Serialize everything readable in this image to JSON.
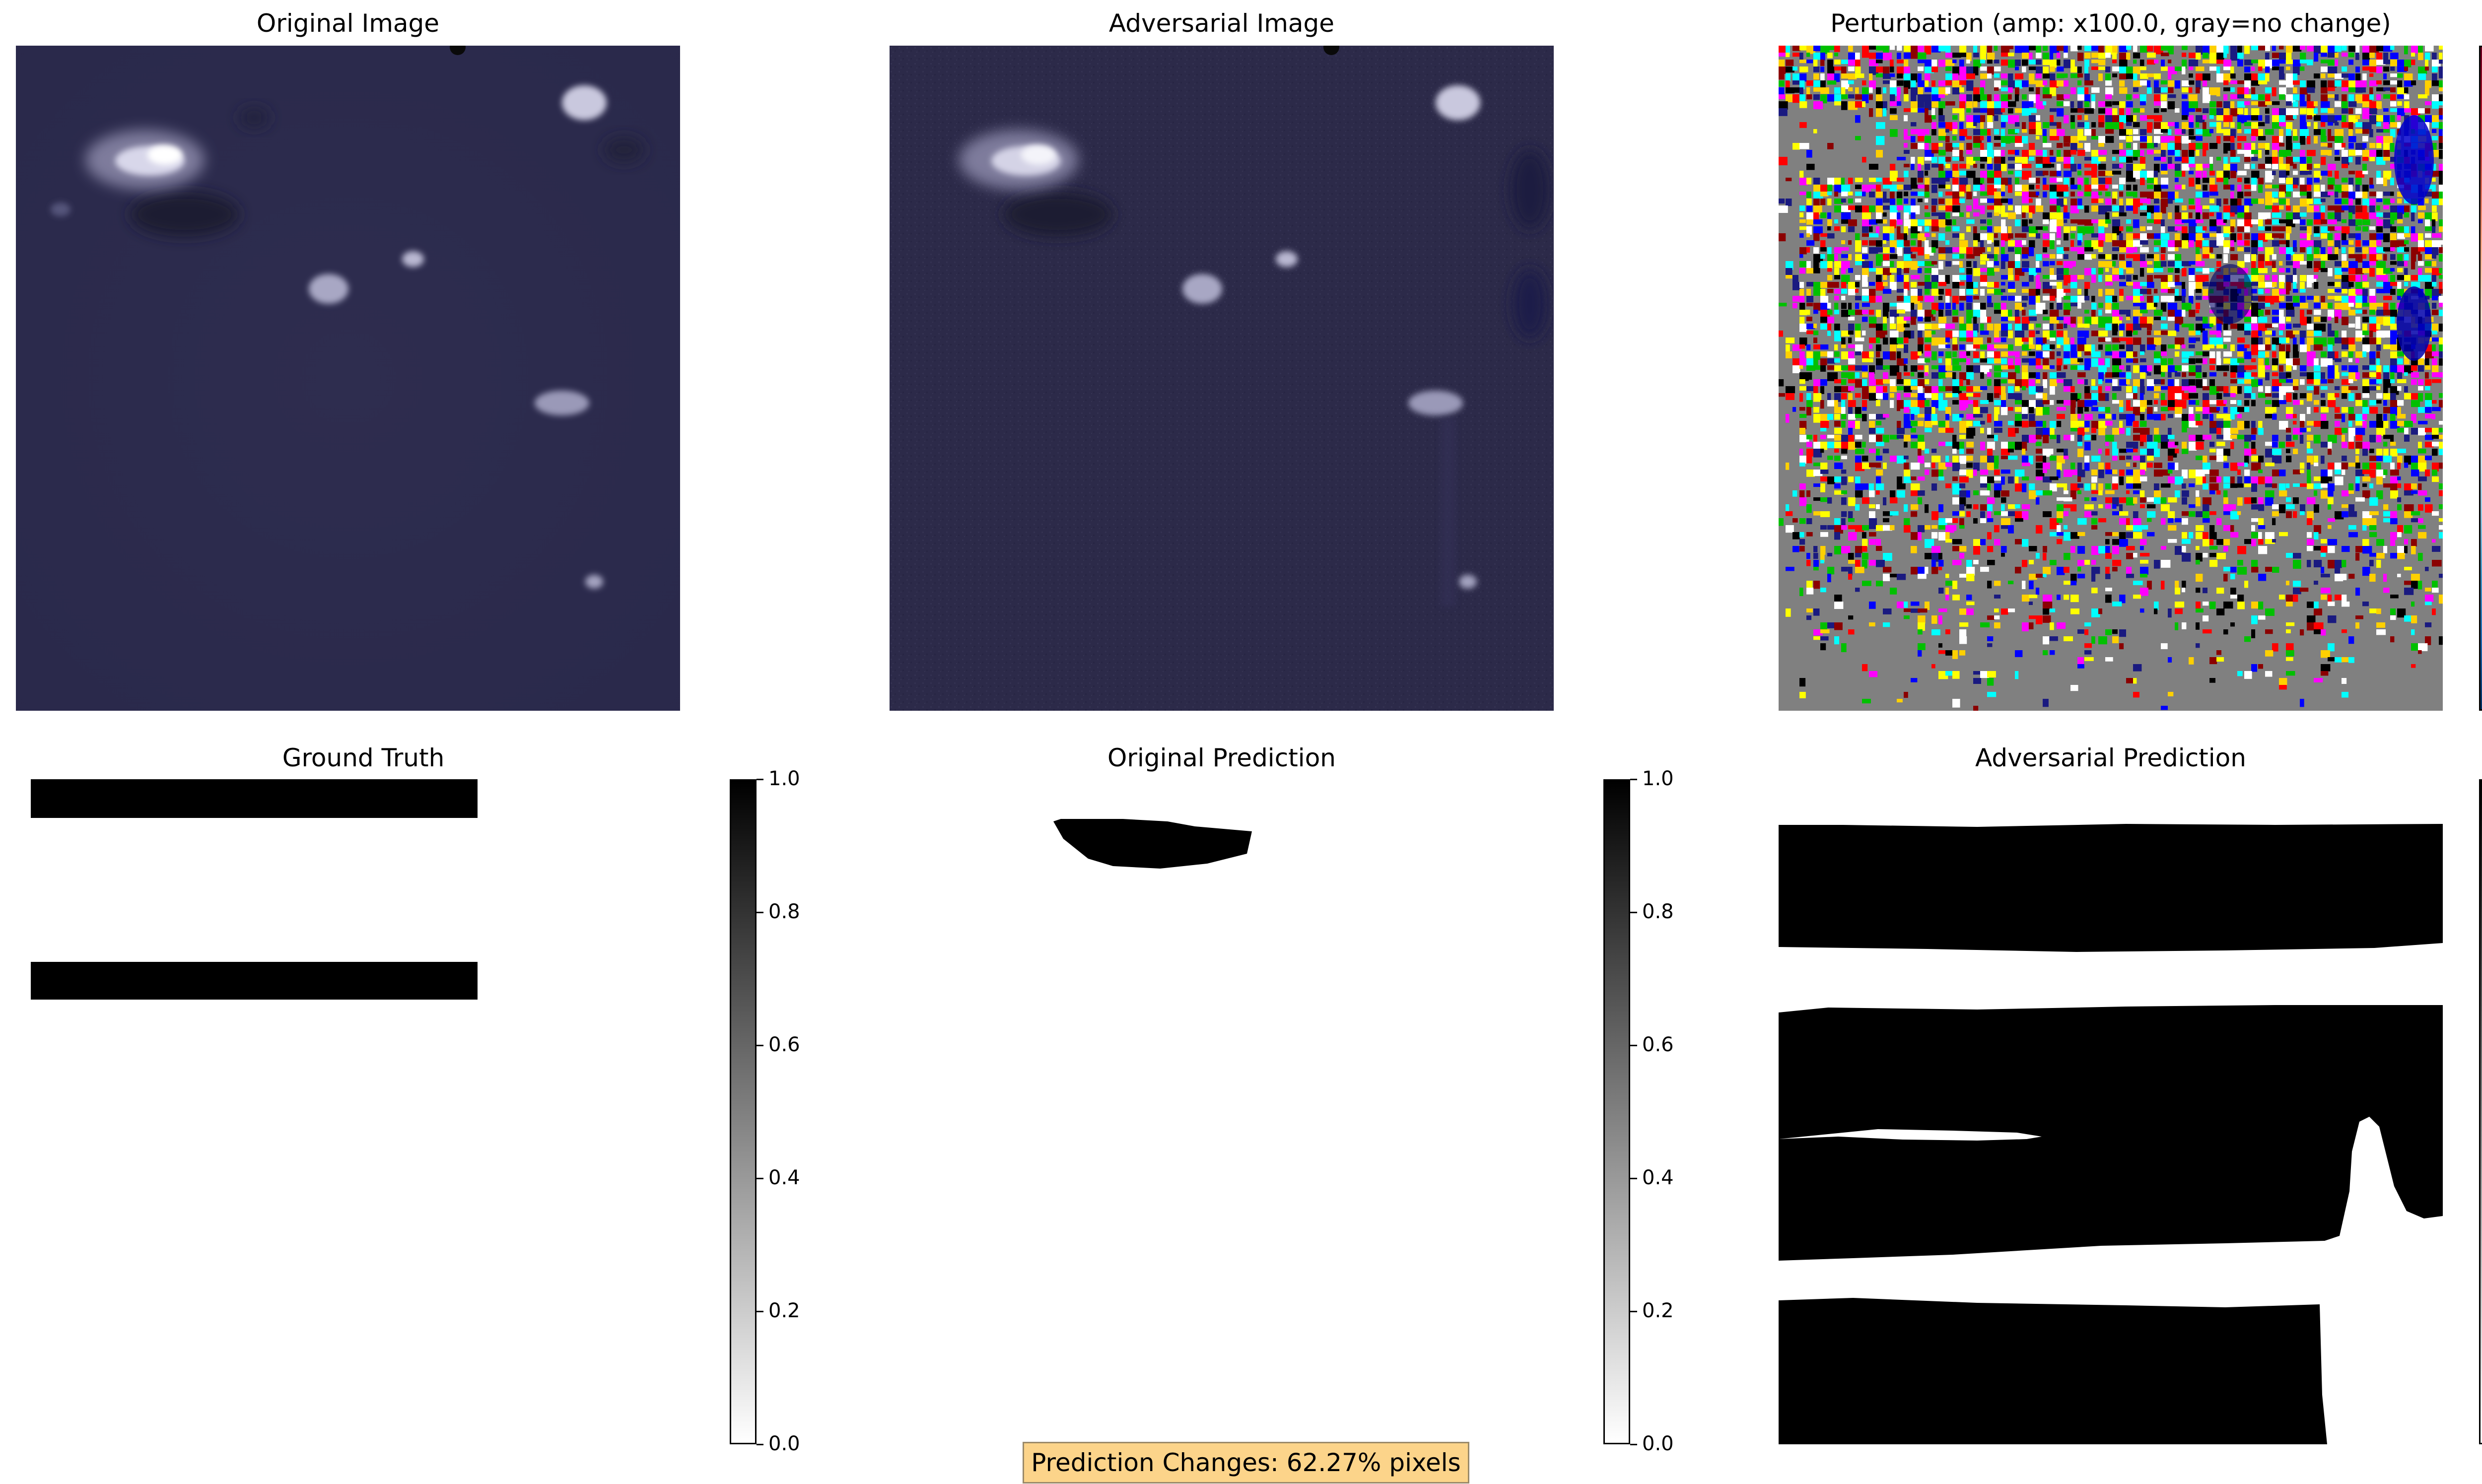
{
  "panels": {
    "original_image": {
      "title": "Original Image"
    },
    "adversarial_image": {
      "title": "Adversarial Image"
    },
    "perturbation": {
      "title": "Perturbation (amp: x100.0, gray=no change)"
    },
    "ground_truth": {
      "title": "Ground Truth"
    },
    "original_prediction": {
      "title": "Original Prediction"
    },
    "adversarial_prediction": {
      "title": "Adversarial Prediction"
    }
  },
  "colorbar_ticks": [
    "1.0",
    "0.8",
    "0.6",
    "0.4",
    "0.2",
    "0.0"
  ],
  "colors": {
    "satellite_background": "#2b2a4a",
    "perturbation_gray": "#808080",
    "mask_black": "#000000",
    "banner_fill": "#fcd48a"
  },
  "banner": {
    "text": "Prediction Changes: 62.27% pixels"
  }
}
